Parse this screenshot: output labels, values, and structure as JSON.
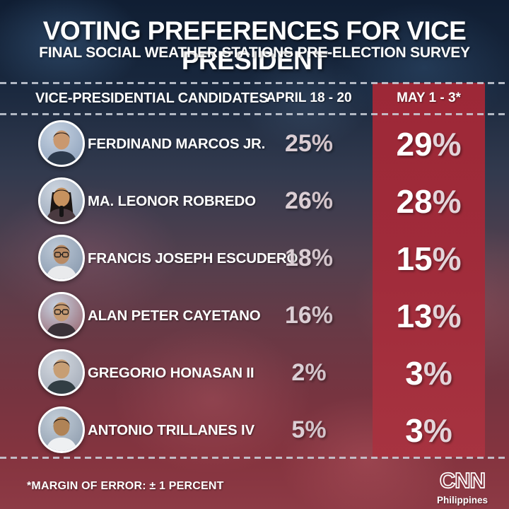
{
  "page": {
    "title": "VOTING PREFERENCES FOR VICE PRESIDENT",
    "subtitle": "FINAL SOCIAL WEATHER STATIONS PRE-ELECTION SURVEY"
  },
  "table": {
    "unit": "%",
    "columns": {
      "candidates": "VICE-PRESIDENTIAL CANDIDATES",
      "april": "APRIL 18 - 20",
      "may": "MAY 1 - 3*"
    },
    "rows": [
      {
        "name": "FERDINAND MARCOS JR.",
        "april": "25",
        "may": "29",
        "avatar": {
          "bg": "#8fa3bd",
          "bg_light": "#c6d2e1",
          "skin": "#c9986f",
          "hair": "#241c1a",
          "shirt": "#2c3a4c",
          "glasses": false,
          "hair_style": "short",
          "mic": false
        }
      },
      {
        "name": "MA. LEONOR ROBREDO",
        "april": "26",
        "may": "28",
        "avatar": {
          "bg": "#97a5b8",
          "bg_light": "#ced6e0",
          "skin": "#c6925f",
          "hair": "#1c1512",
          "shirt": "#4a3a40",
          "glasses": false,
          "hair_style": "long",
          "mic": true
        }
      },
      {
        "name": "FRANCIS JOSEPH ESCUDERO",
        "april": "18",
        "may": "15",
        "avatar": {
          "bg": "#8899ae",
          "bg_light": "#bcc8d6",
          "skin": "#b88a64",
          "hair": "#1e1714",
          "shirt": "#e9eaec",
          "glasses": true,
          "hair_style": "short",
          "mic": false
        }
      },
      {
        "name": "ALAN PETER CAYETANO",
        "april": "16",
        "may": "13",
        "avatar": {
          "bg": "#9a6a74",
          "bg_light": "#c49archive",
          "skin": "#c59a72",
          "hair": "#231a18",
          "shirt": "#3a3138",
          "glasses": true,
          "hair_style": "short",
          "mic": false
        }
      },
      {
        "name": "GREGORIO HONASAN II",
        "april": "2",
        "may": "3",
        "avatar": {
          "bg": "#a3abb8",
          "bg_light": "#d5dae1",
          "skin": "#c79e74",
          "hair": "#20191c",
          "shirt": "#323e44",
          "glasses": false,
          "hair_style": "short",
          "mic": false
        }
      },
      {
        "name": "ANTONIO TRILLANES IV",
        "april": "5",
        "may": "3",
        "avatar": {
          "bg": "#8f9dae",
          "bg_light": "#c3ced9",
          "skin": "#b08356",
          "hair": "#181210",
          "shirt": "#eef0f2",
          "glasses": false,
          "hair_style": "short",
          "mic": false
        }
      }
    ]
  },
  "footer": {
    "note": "*MARGIN OF ERROR: ± 1 PERCENT",
    "logo": {
      "brand": "CNN",
      "region": "Philippines"
    }
  },
  "colors": {
    "highlight_column": "#a02b3a",
    "april_value_text": "#dbced4",
    "may_value_text": "#ffffff",
    "dashed_line": "#ccd1db",
    "background_top": "#101e33",
    "background_bottom": "#8d3a45"
  },
  "chart_data": {
    "type": "table",
    "title": "VOTING PREFERENCES FOR VICE PRESIDENT",
    "subtitle": "FINAL SOCIAL WEATHER STATIONS PRE-ELECTION SURVEY",
    "categories": [
      "Ferdinand Marcos Jr.",
      "Ma. Leonor Robredo",
      "Francis Joseph Escudero",
      "Alan Peter Cayetano",
      "Gregorio Honasan II",
      "Antonio Trillanes IV"
    ],
    "series": [
      {
        "name": "April 18 - 20",
        "values": [
          25,
          26,
          18,
          16,
          2,
          5
        ],
        "unit": "%"
      },
      {
        "name": "May 1 - 3*",
        "values": [
          29,
          28,
          15,
          13,
          3,
          3
        ],
        "unit": "%",
        "highlighted": true
      }
    ],
    "annotations": [
      "*Margin of error: ± 1 percent"
    ],
    "logo_text": "CNN Philippines",
    "legend_position": "column-headers",
    "grid": false
  }
}
